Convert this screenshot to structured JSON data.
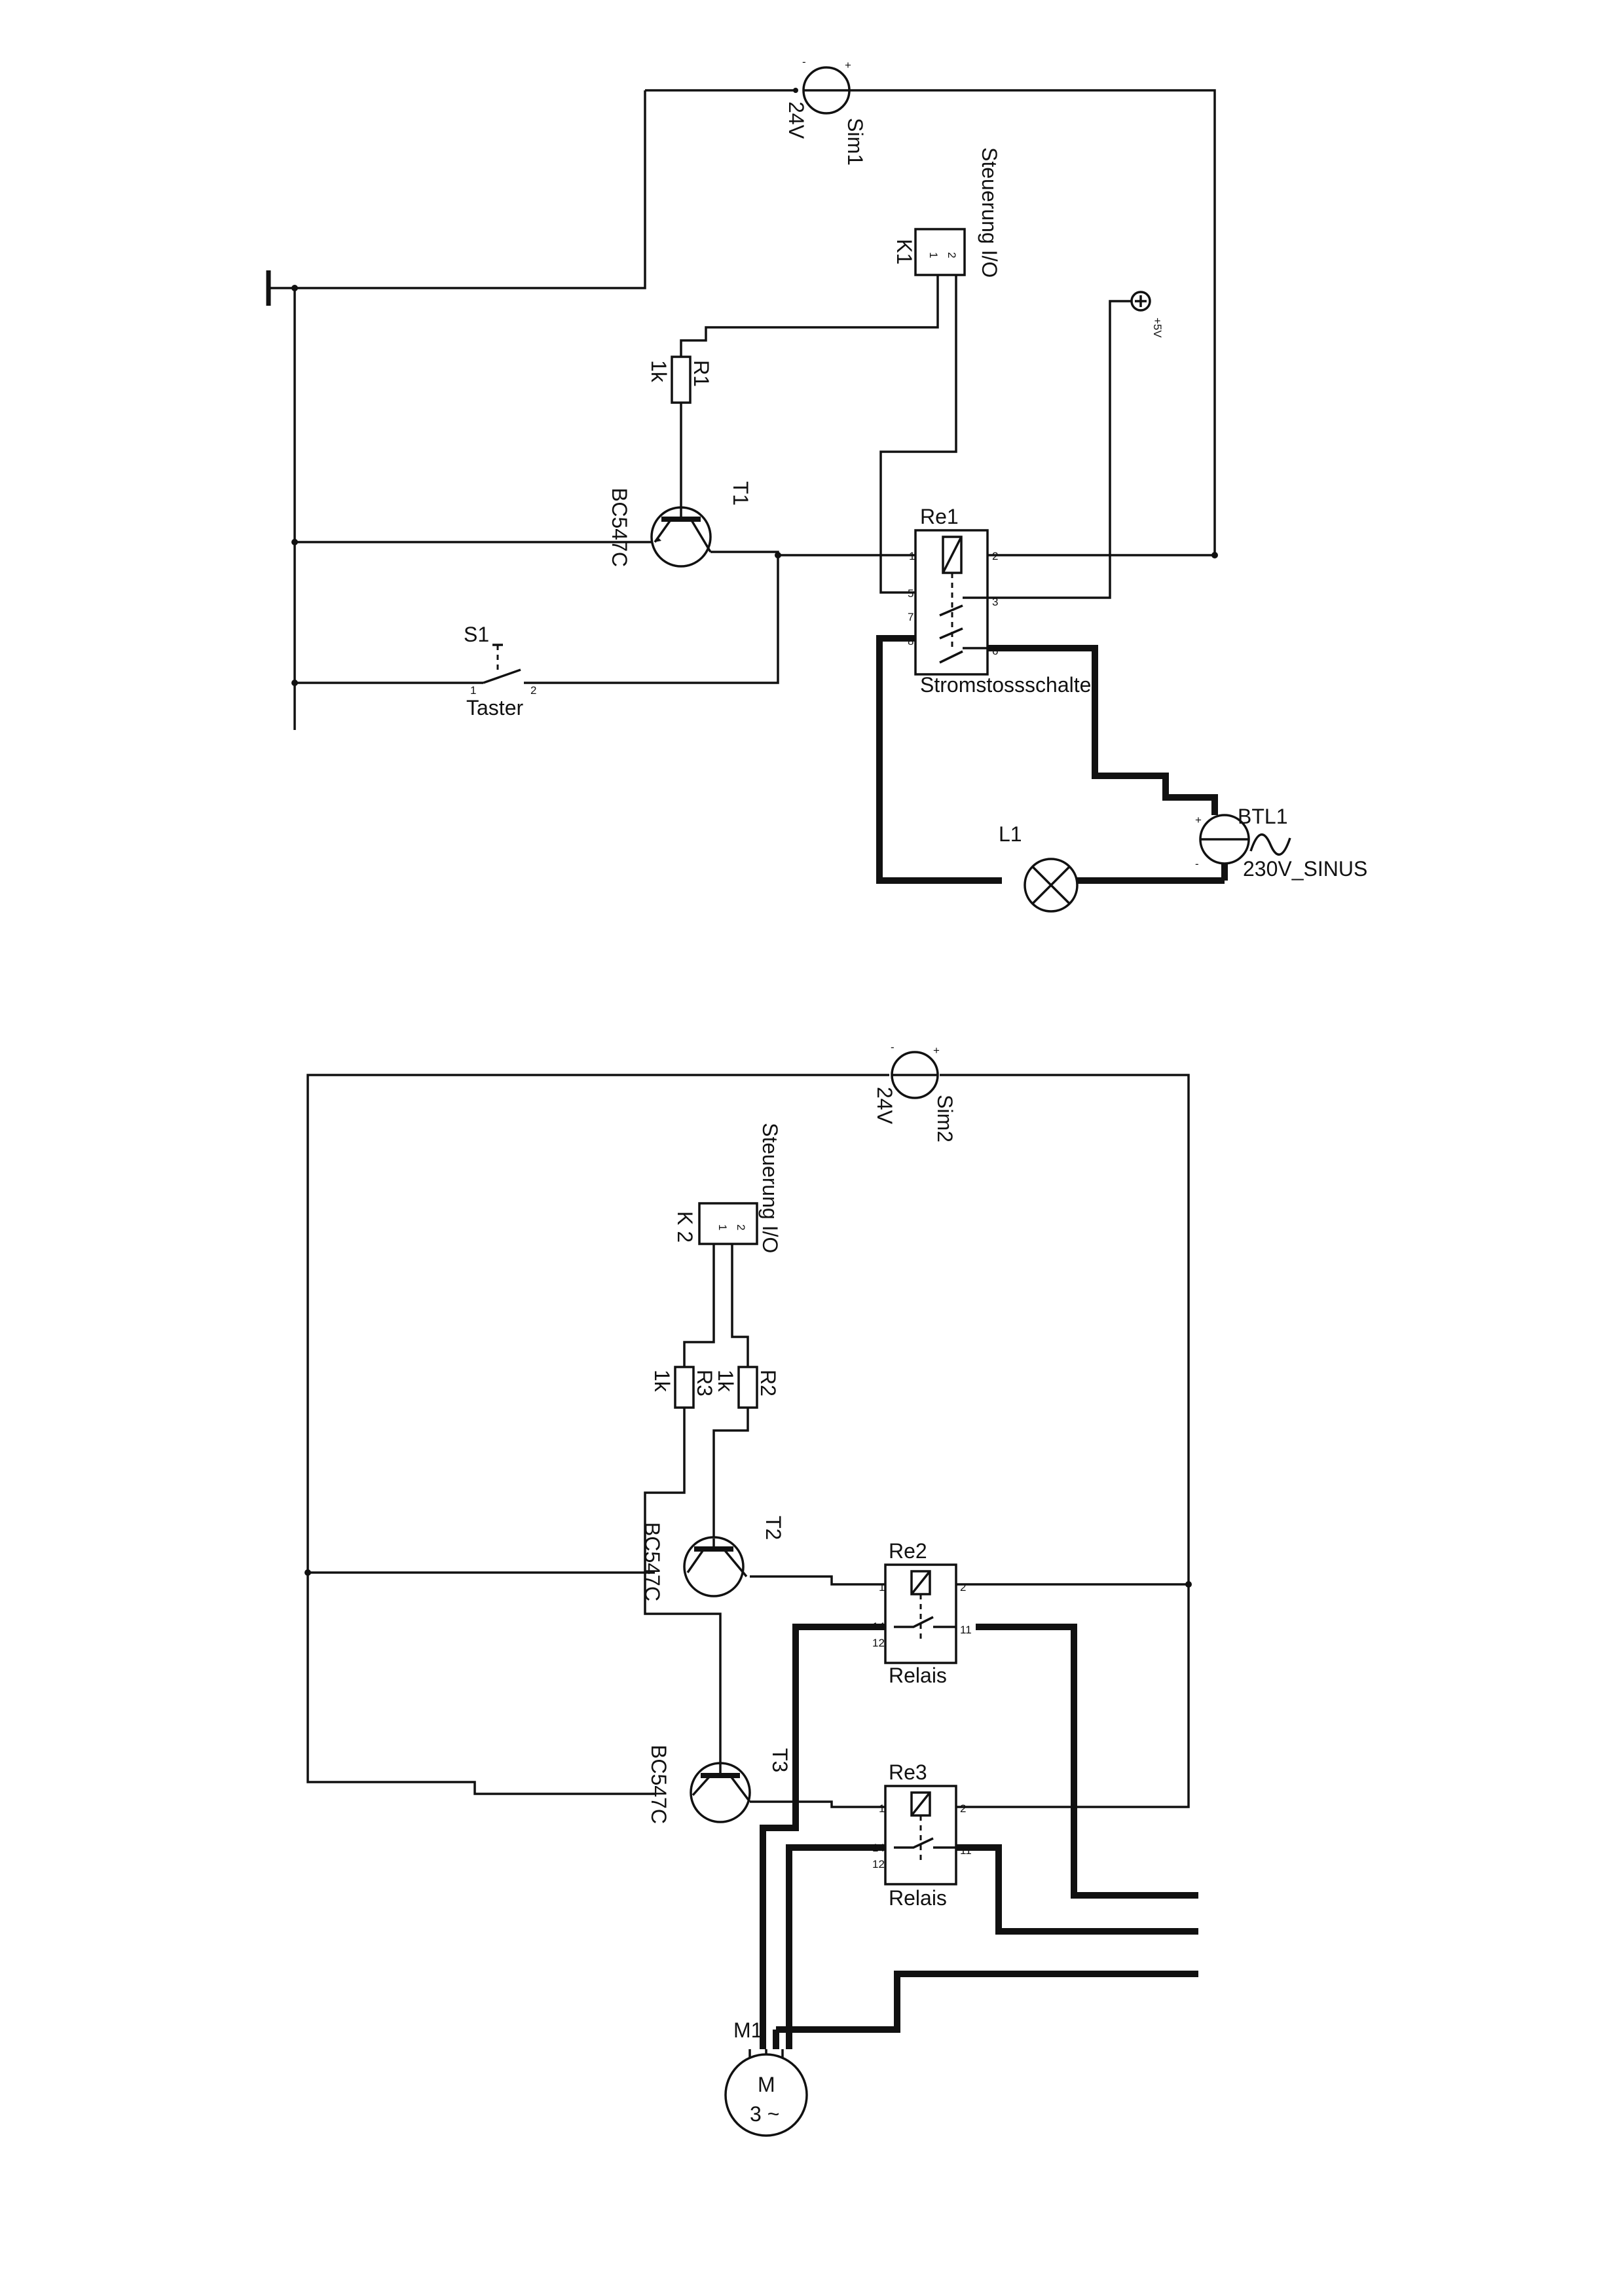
{
  "circuit1": {
    "sim1": {
      "ref": "Sim1",
      "value": "24V"
    },
    "k1": {
      "ref": "K1",
      "type": "Steuerung I/O"
    },
    "plus5v": {
      "label": "+5V"
    },
    "r1": {
      "ref": "R1",
      "value": "1k"
    },
    "t1": {
      "ref": "T1",
      "type": "BC547C"
    },
    "s1": {
      "ref": "S1",
      "type": "Taster"
    },
    "re1": {
      "ref": "Re1",
      "type": "Stromstossschalter"
    },
    "btl1": {
      "ref": "BTL1",
      "value": "230V_SINUS"
    },
    "l1": {
      "ref": "L1"
    }
  },
  "circuit2": {
    "sim2": {
      "ref": "Sim2",
      "value": "24V"
    },
    "k2": {
      "ref": "K 2",
      "type": "Steuerung I/O"
    },
    "r2": {
      "ref": "R2",
      "value": "1k"
    },
    "r3": {
      "ref": "R3",
      "value": "1k"
    },
    "t2": {
      "ref": "T2",
      "type": "BC547C"
    },
    "t3": {
      "ref": "T3",
      "type": "BC547C"
    },
    "re2": {
      "ref": "Re2",
      "type": "Relais"
    },
    "re3": {
      "ref": "Re3",
      "type": "Relais"
    },
    "m1": {
      "ref": "M1",
      "symbol": "M",
      "phase": "3 ~"
    }
  },
  "pins": {
    "one": "1",
    "two": "2",
    "three": "3",
    "five": "5",
    "six": "6",
    "seven": "7",
    "eight": "8",
    "eleven": "11",
    "twelve": "12",
    "fourteen": "14",
    "plus": "+",
    "minus": "-"
  }
}
